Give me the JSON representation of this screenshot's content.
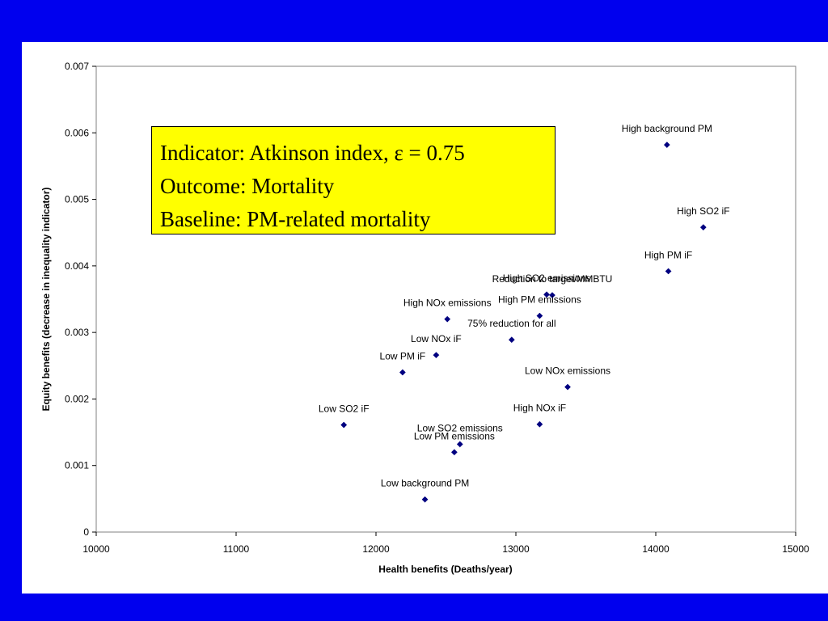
{
  "info_box": {
    "line1": "Indicator: Atkinson index, ε = 0.75",
    "line2": "Outcome: Mortality",
    "line3": "Baseline: PM-related mortality"
  },
  "colors": {
    "background": "#0000ee",
    "marker": "#000080",
    "box": "#ffff00"
  },
  "chart_data": {
    "type": "scatter",
    "xlabel": "Health benefits (Deaths/year)",
    "ylabel": "Equity benefits (decrease in inequality indicator)",
    "xlim": [
      10000,
      15000
    ],
    "ylim": [
      0,
      0.007
    ],
    "xticks": [
      "10000",
      "11000",
      "12000",
      "13000",
      "14000",
      "15000"
    ],
    "yticks": [
      "0",
      "0.001",
      "0.002",
      "0.003",
      "0.004",
      "0.005",
      "0.006",
      "0.007"
    ],
    "grid": false,
    "marker": "diamond",
    "points": [
      {
        "label": "High background PM",
        "x": 14080,
        "y": 0.00582
      },
      {
        "label": "High SO2 iF",
        "x": 14340,
        "y": 0.00458
      },
      {
        "label": "High PM iF",
        "x": 14090,
        "y": 0.00392
      },
      {
        "label": "High SO2 emissions",
        "x": 13220,
        "y": 0.00357
      },
      {
        "label": "Reduction to target/MMBTU",
        "x": 13260,
        "y": 0.00356
      },
      {
        "label": "High PM emissions",
        "x": 13170,
        "y": 0.00325
      },
      {
        "label": "High NOx emissions",
        "x": 12510,
        "y": 0.0032
      },
      {
        "label": "75% reduction for all",
        "x": 12970,
        "y": 0.00289
      },
      {
        "label": "Low NOx iF",
        "x": 12430,
        "y": 0.00266
      },
      {
        "label": "Low PM iF",
        "x": 12190,
        "y": 0.0024
      },
      {
        "label": "Low NOx emissions",
        "x": 13370,
        "y": 0.00218
      },
      {
        "label": "Low SO2 iF",
        "x": 11770,
        "y": 0.00161
      },
      {
        "label": "High NOx iF",
        "x": 13170,
        "y": 0.00162
      },
      {
        "label": "Low SO2 emissions",
        "x": 12600,
        "y": 0.00132
      },
      {
        "label": "Low PM emissions",
        "x": 12560,
        "y": 0.0012
      },
      {
        "label": "Low background PM",
        "x": 12350,
        "y": 0.00049
      }
    ]
  }
}
